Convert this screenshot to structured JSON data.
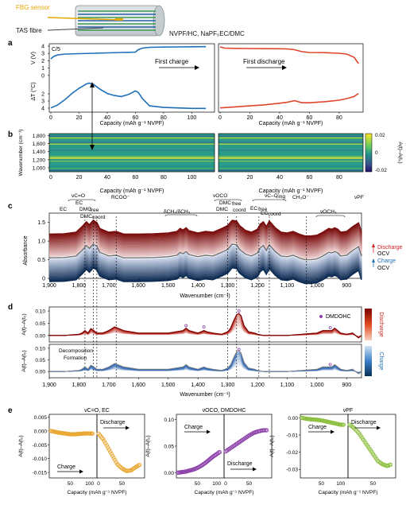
{
  "header": {
    "fbg_label": "FBG sensor",
    "tas_label": "TAS fibre",
    "cell_label": "NVPF/HC, NaPF₆EC/DMC"
  },
  "panel_letters": {
    "a": "a",
    "b": "b",
    "c": "c",
    "d": "d",
    "e": "e"
  },
  "colors": {
    "charge": "#1f6fb8",
    "discharge": "#e0452c",
    "ocv": "#6e6e6e",
    "green": "#8cbf3f",
    "purple": "#8b3fa8",
    "orange": "#e8a630",
    "fbg": "#e8a600"
  },
  "chart_data": [
    {
      "id": "a",
      "type": "line",
      "rate_label": "C/5",
      "ylabel_top": "V (V)",
      "ylabel_bottom": "ΔT (°C)",
      "yticks": [
        "4",
        "3",
        "2",
        "1",
        "0"
      ],
      "annotations": [
        "First charge",
        "First discharge"
      ],
      "xlabel": "Capacity (mAh g⁻¹ NVPF)",
      "charge_xticks": [
        "0",
        "20",
        "40",
        "60",
        "80",
        "100"
      ],
      "discharge_xticks": [
        "0",
        "20",
        "40",
        "60",
        "80"
      ],
      "charge_voltage": {
        "x": [
          0,
          2,
          5,
          10,
          20,
          30,
          40,
          50,
          55,
          60,
          62,
          65,
          70,
          80,
          90,
          100,
          110
        ],
        "y": [
          2.6,
          2.9,
          3.1,
          3.2,
          3.25,
          3.3,
          3.35,
          3.4,
          3.42,
          3.45,
          3.75,
          3.95,
          4.05,
          4.08,
          4.1,
          4.12,
          4.13
        ]
      },
      "charge_temp": {
        "x": [
          0,
          5,
          10,
          15,
          20,
          25,
          27,
          30,
          35,
          40,
          45,
          50,
          55,
          58,
          60,
          62,
          65,
          70,
          80,
          90,
          100,
          110
        ],
        "y": [
          0.1,
          0.4,
          0.9,
          1.5,
          2.0,
          2.4,
          2.5,
          2.4,
          1.9,
          1.5,
          1.3,
          1.2,
          1.4,
          1.6,
          1.75,
          1.6,
          1.0,
          0.3,
          0.15,
          0.1,
          0.05,
          0.05
        ]
      },
      "discharge_voltage": {
        "x": [
          0,
          3,
          10,
          20,
          30,
          40,
          45,
          50,
          55,
          60,
          70,
          80,
          85,
          90,
          93
        ],
        "y": [
          4.1,
          3.95,
          3.92,
          3.9,
          3.88,
          3.87,
          3.85,
          3.75,
          3.5,
          3.4,
          3.38,
          3.3,
          3.2,
          2.8,
          2.0
        ]
      },
      "discharge_temp": {
        "x": [
          0,
          10,
          20,
          30,
          40,
          45,
          50,
          55,
          60,
          70,
          80,
          85,
          90,
          93
        ],
        "y": [
          0.1,
          0.2,
          0.3,
          0.4,
          0.55,
          0.65,
          0.8,
          0.6,
          0.6,
          0.7,
          0.85,
          1.0,
          1.2,
          1.5
        ]
      }
    },
    {
      "id": "b",
      "type": "heatmap",
      "ylabel": "Wavenumber (cm⁻¹)",
      "yticks": [
        "1,000",
        "1,200",
        "1,400",
        "1,600",
        "1,800"
      ],
      "xlabel": "Capacity (mAh g⁻¹ NVPF)",
      "charge_xticks": [
        "0",
        "20",
        "40",
        "60",
        "80",
        "100"
      ],
      "discharge_xticks": [
        "0",
        "20",
        "40",
        "60",
        "80"
      ],
      "colorbar_label": "A(t)–A(t₀)",
      "colorbar_ticks": [
        "0.02",
        "0",
        "-0.02"
      ],
      "bright_bands": [
        1250,
        1600,
        1750,
        1180
      ]
    },
    {
      "id": "c",
      "type": "line",
      "ylabel": "Absorbance",
      "yticks": [
        "1.5",
        "1.0",
        "0.5",
        "0"
      ],
      "xlabel": "Wavenumber (cm⁻¹)",
      "xticks": [
        "1,900",
        "1,800",
        "1,700",
        "1,600",
        "1,500",
        "1,400",
        "1,300",
        "1,200",
        "1,100",
        "1,000",
        "900"
      ],
      "peak_labels": [
        "νC=O",
        "EC",
        "EC",
        "DMC",
        "free",
        "DMC",
        "coord",
        "RCOO⁻",
        "δCH₂/δCH₃",
        "νOCO",
        "DMC",
        "free",
        "DMC",
        "coord",
        "νC–C",
        "ring",
        "EC",
        "free",
        "EC",
        "coord",
        "CH₃O⁻",
        "νOCH₃",
        "νPF"
      ],
      "legend": [
        "Discharge",
        "OCV",
        "Charge",
        "OCV"
      ],
      "dashed_lines": [
        1780,
        1752,
        1740,
        1675,
        1300,
        1270,
        1195,
        1160,
        1035
      ],
      "ocv_spectrum": {
        "x": [
          1900,
          1850,
          1810,
          1790,
          1775,
          1765,
          1752,
          1740,
          1730,
          1700,
          1675,
          1650,
          1600,
          1550,
          1500,
          1470,
          1460,
          1450,
          1440,
          1430,
          1400,
          1375,
          1350,
          1320,
          1300,
          1285,
          1270,
          1260,
          1240,
          1220,
          1200,
          1190,
          1180,
          1170,
          1160,
          1140,
          1120,
          1100,
          1080,
          1060,
          1040,
          1020,
          1000,
          980,
          960,
          950,
          940,
          930,
          920,
          900,
          880,
          860,
          850
        ],
        "y": [
          0.55,
          0.56,
          0.6,
          0.75,
          0.88,
          0.8,
          0.92,
          0.86,
          0.7,
          0.6,
          0.62,
          0.55,
          0.55,
          0.56,
          0.58,
          0.62,
          0.7,
          0.66,
          0.72,
          0.64,
          0.58,
          0.62,
          0.6,
          0.7,
          0.78,
          0.92,
          0.9,
          0.78,
          0.65,
          0.6,
          0.68,
          0.82,
          0.88,
          0.75,
          0.9,
          0.72,
          0.6,
          0.58,
          0.62,
          0.55,
          0.5,
          0.5,
          0.52,
          0.6,
          0.7,
          0.68,
          0.72,
          0.68,
          0.6,
          0.62,
          0.75,
          0.85,
          0.6
        ]
      }
    },
    {
      "id": "d",
      "type": "line",
      "ylabel_top": "A(t)–A(t₀)",
      "yticks_top": [
        "0.10",
        "0.05",
        "0.00"
      ],
      "ylabel_bottom": "A(t)–A(t₀)",
      "yticks_bottom": [
        "0.10",
        "0.05",
        "0.00"
      ],
      "legend_label": "DMDOHC",
      "side_top": "Discharge",
      "side_bottom": "Charge",
      "annotations": [
        "Decomposition",
        "Formation"
      ],
      "xlabel": "Wavenumber (cm⁻¹)",
      "xticks": [
        "1,900",
        "1,800",
        "1,700",
        "1,600",
        "1,500",
        "1,400",
        "1,300",
        "1,200",
        "1,100",
        "1,000",
        "900"
      ],
      "discharge_diff": {
        "x": [
          1900,
          1850,
          1800,
          1790,
          1780,
          1770,
          1760,
          1750,
          1740,
          1720,
          1700,
          1680,
          1670,
          1650,
          1600,
          1550,
          1500,
          1450,
          1440,
          1430,
          1400,
          1380,
          1370,
          1350,
          1320,
          1300,
          1290,
          1280,
          1270,
          1262,
          1255,
          1245,
          1230,
          1210,
          1200,
          1180,
          1150,
          1100,
          1050,
          1000,
          980,
          960,
          950,
          940,
          930,
          920,
          900,
          880,
          860,
          850
        ],
        "y": [
          0.0,
          0.0,
          0.005,
          0.01,
          0.02,
          0.01,
          0.028,
          0.02,
          0.01,
          0.01,
          0.02,
          0.035,
          0.03,
          0.02,
          0.01,
          0.01,
          0.01,
          0.02,
          0.03,
          0.02,
          0.01,
          0.02,
          0.015,
          0.01,
          0.005,
          0.015,
          0.03,
          0.06,
          0.085,
          0.09,
          0.08,
          0.04,
          0.015,
          0.01,
          0.005,
          0.0,
          0.0,
          0.0,
          0.005,
          0.01,
          0.02,
          0.02,
          0.02,
          0.03,
          0.02,
          0.01,
          0.005,
          0.01,
          -0.01,
          0.0
        ]
      }
    },
    {
      "id": "e",
      "type": "scatter",
      "panels": [
        {
          "title": "νC=O, EC",
          "ylabel": "A(t)–A(t₀)",
          "yticks": [
            "0.005",
            "0.000",
            "-0.005",
            "-0.010",
            "-0.015"
          ],
          "ylim": [
            -0.017,
            0.006
          ],
          "charge_x": [
            0,
            10,
            20,
            30,
            40,
            50,
            60,
            70,
            80,
            90,
            100,
            110
          ],
          "charge_y": [
            0.0,
            -0.0003,
            -0.0006,
            -0.0008,
            -0.001,
            -0.0012,
            -0.0012,
            -0.0011,
            -0.001,
            -0.0009,
            -0.0009,
            -0.001
          ],
          "discharge_x": [
            0,
            10,
            20,
            30,
            40,
            50,
            60,
            70,
            80,
            90
          ],
          "discharge_y": [
            -0.001,
            -0.003,
            -0.006,
            -0.009,
            -0.012,
            -0.0135,
            -0.0145,
            -0.0142,
            -0.013,
            -0.012
          ],
          "labels": [
            "Charge",
            "Discharge"
          ],
          "charge_xticks": [
            "50",
            "100"
          ],
          "discharge_xticks": [
            "0",
            "50"
          ]
        },
        {
          "title": "νOCO, DMDOHC",
          "ylabel": "A(t)–A(t₀)",
          "yticks": [
            "0.10",
            "0.05",
            "0.00"
          ],
          "ylim": [
            -0.01,
            0.11
          ],
          "charge_x": [
            0,
            10,
            20,
            30,
            40,
            50,
            60,
            70,
            80,
            90,
            100,
            110
          ],
          "charge_y": [
            0.0,
            0.001,
            0.002,
            0.004,
            0.006,
            0.009,
            0.013,
            0.018,
            0.024,
            0.03,
            0.035,
            0.04
          ],
          "discharge_x": [
            0,
            10,
            20,
            30,
            40,
            50,
            60,
            70,
            80,
            90
          ],
          "discharge_y": [
            0.04,
            0.046,
            0.052,
            0.058,
            0.064,
            0.07,
            0.075,
            0.078,
            0.08,
            0.08
          ],
          "labels": [
            "Charge",
            "Discharge"
          ],
          "charge_xticks": [
            "50",
            "100"
          ],
          "discharge_xticks": [
            "0",
            "50"
          ]
        },
        {
          "title": "νPF",
          "ylabel": "A(t)–A(t₀)",
          "yticks": [
            "0.00",
            "-0.01",
            "-0.02",
            "-0.03"
          ],
          "ylim": [
            -0.035,
            0.002
          ],
          "charge_x": [
            0,
            10,
            20,
            30,
            40,
            50,
            60,
            70,
            80,
            90,
            100,
            110
          ],
          "charge_y": [
            0.0,
            -0.0005,
            -0.0008,
            -0.001,
            -0.0012,
            -0.0015,
            -0.002,
            -0.0025,
            -0.003,
            -0.0035,
            -0.004,
            -0.004
          ],
          "discharge_x": [
            0,
            10,
            20,
            30,
            40,
            50,
            60,
            70,
            80,
            90
          ],
          "discharge_y": [
            -0.004,
            -0.006,
            -0.009,
            -0.013,
            -0.017,
            -0.021,
            -0.025,
            -0.027,
            -0.028,
            -0.027
          ],
          "labels": [
            "Charge",
            "Discharge"
          ],
          "charge_xticks": [
            "50",
            "100"
          ],
          "discharge_xticks": [
            "50"
          ]
        }
      ],
      "xlabel": "Capacity (mAh g⁻¹ NVPF)"
    }
  ]
}
